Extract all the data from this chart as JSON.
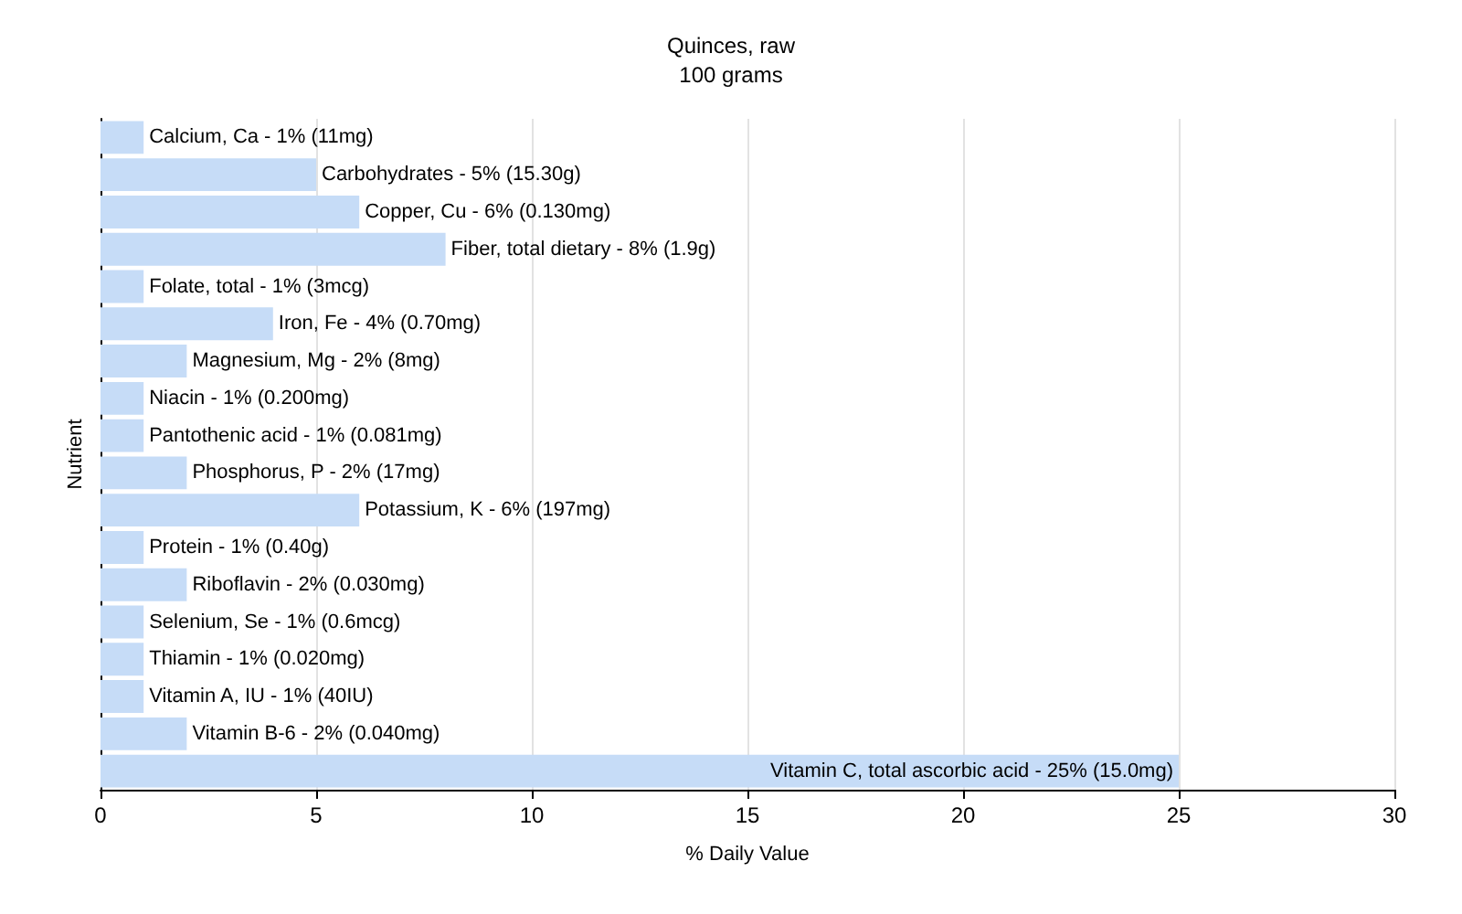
{
  "chart_data": {
    "type": "bar",
    "orientation": "horizontal",
    "title": "Quinces, raw",
    "subtitle": "100 grams",
    "xlabel": "% Daily Value",
    "ylabel": "Nutrient",
    "categories": [
      "Calcium, Ca - 1% (11mg)",
      "Carbohydrates - 5% (15.30g)",
      "Copper, Cu - 6% (0.130mg)",
      "Fiber, total dietary - 8% (1.9g)",
      "Folate, total - 1% (3mcg)",
      "Iron, Fe - 4% (0.70mg)",
      "Magnesium, Mg - 2% (8mg)",
      "Niacin - 1% (0.200mg)",
      "Pantothenic acid - 1% (0.081mg)",
      "Phosphorus, P - 2% (17mg)",
      "Potassium, K - 6% (197mg)",
      "Protein - 1% (0.40g)",
      "Riboflavin - 2% (0.030mg)",
      "Selenium, Se - 1% (0.6mcg)",
      "Thiamin - 1% (0.020mg)",
      "Vitamin A, IU - 1% (40IU)",
      "Vitamin B-6 - 2% (0.040mg)",
      "Vitamin C, total ascorbic acid - 25% (15.0mg)"
    ],
    "values": [
      1,
      5,
      6,
      8,
      1,
      4,
      2,
      1,
      1,
      2,
      6,
      1,
      2,
      1,
      1,
      1,
      2,
      25
    ],
    "color": "#c6dcf7",
    "xlim": [
      0,
      30
    ],
    "xticks": [
      0,
      5,
      10,
      15,
      20,
      25,
      30
    ],
    "grid": "x"
  }
}
